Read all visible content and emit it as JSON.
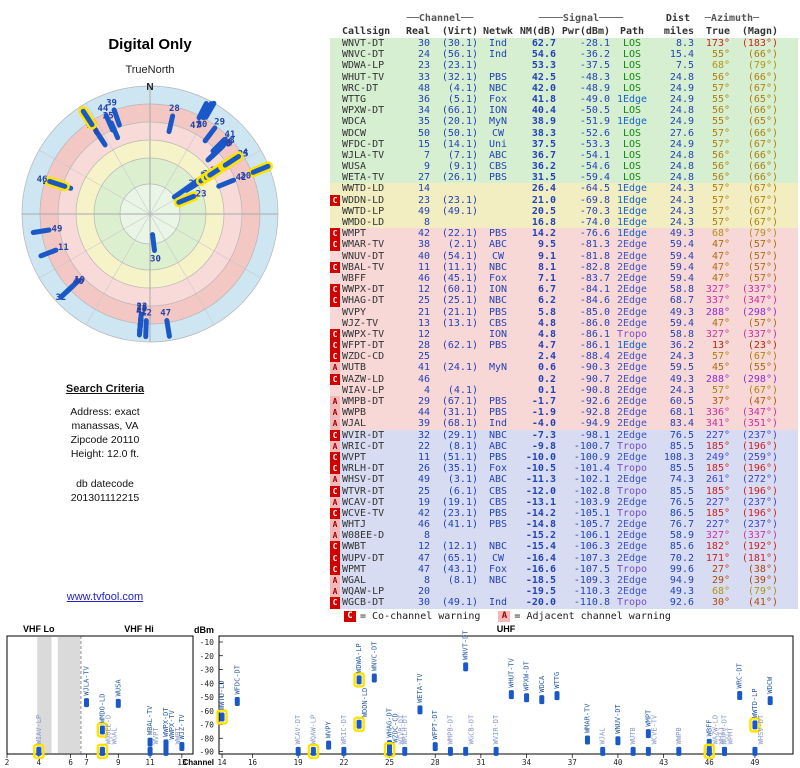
{
  "title": "Digital Only",
  "compass_label": "TrueNorth",
  "search": {
    "heading": "Search Criteria",
    "lines": [
      "Address: exact",
      "manassas, VA",
      "Zipcode 20110",
      "Height: 12.0 ft."
    ],
    "datecode_label": "db datecode",
    "datecode": "201301112215"
  },
  "link": "www.tvfool.com",
  "legend": {
    "c_symbol": "C",
    "c_label": "= Co-channel warning",
    "a_symbol": "A",
    "a_label": "= Adjacent channel warning"
  },
  "table": {
    "header1": {
      "channel": "──Channel──",
      "signal": "────Signal────",
      "dist": "Dist",
      "azimuth": "─Azimuth─"
    },
    "header2": {
      "callsign": "Callsign",
      "real": "Real",
      "virt": "(Virt)",
      "netwk": "Netwk",
      "nm": "NM(dB)",
      "pwr": "Pwr(dBm)",
      "path": "Path",
      "miles": "miles",
      "true": "True",
      "magn": "(Magn)"
    }
  },
  "colors": {
    "accent_blue": "#2343b8",
    "bar": "#1a58c8",
    "highlight": "#ffe400",
    "warn_c_bg": "#d40000",
    "warn_a_bg": "#f5b8b8",
    "row_green": "#d6efd0",
    "row_yellow": "#f2eec2",
    "row_pink": "#f8d7d7",
    "row_blue": "#d7dcf2",
    "path": {
      "LOS": "#0b8a0b",
      "1Edge": "#1667c9",
      "2Edge": "#4256c4",
      "Tropo": "#7a4fc9"
    },
    "radar_bands": [
      [
        "#cde6f1",
        128
      ],
      [
        "#f3c7c4",
        110
      ],
      [
        "#f8dbd9",
        92
      ],
      [
        "#f7f3c9",
        74
      ],
      [
        "#dcefcf",
        56
      ],
      [
        "#e9f6e6",
        30
      ]
    ]
  },
  "chart_data": {
    "type": "table",
    "columns": [
      "Callsign",
      "Real",
      "(Virt)",
      "Netwk",
      "NM(dB)",
      "Pwr(dBm)",
      "Path",
      "miles",
      "True",
      "(Magn)"
    ],
    "radar": {
      "type": "scatter",
      "north": "N"
    },
    "bottom_chart": {
      "type": "scatter",
      "ylabel": "dBm",
      "xlabel": "Channel",
      "yticks": [
        -10,
        -20,
        -30,
        -40,
        -50,
        -60,
        -70,
        -80,
        -90
      ],
      "vhf_lo_label": "VHF Lo",
      "vhf_hi_label": "VHF Hi",
      "uhf_label": "UHF",
      "vhf_ticks": [
        2,
        4,
        6,
        7,
        9,
        11,
        13
      ],
      "uhf_ticks": [
        14,
        16,
        19,
        22,
        25,
        28,
        31,
        34,
        37,
        40,
        43,
        46,
        49
      ],
      "gray_bands": [
        [
          3.9,
          4.8
        ],
        [
          5.2,
          6.6
        ]
      ],
      "ylim": [
        -90,
        -10
      ],
      "xlim_vhf": [
        2,
        13.7
      ],
      "xlim_uhf": [
        13.8,
        51.5
      ]
    },
    "rows": [
      {
        "callsign": "WNVT-DT",
        "real": 30,
        "virt": "30.1",
        "net": "Ind",
        "nm": 62.7,
        "pwr": -28.1,
        "path": "LOS",
        "dist": 8.3,
        "az_true": 173,
        "az_magn": 183,
        "warn": "",
        "hl": false
      },
      {
        "callsign": "WNVC-DT",
        "real": 24,
        "virt": "56.1",
        "net": "Ind",
        "nm": 54.6,
        "pwr": -36.2,
        "path": "LOS",
        "dist": 15.4,
        "az_true": 55,
        "az_magn": 66,
        "warn": "",
        "hl": false
      },
      {
        "callsign": "WDWA-LP",
        "real": 23,
        "virt": "23.1",
        "net": "",
        "nm": 53.3,
        "pwr": -37.5,
        "path": "LOS",
        "dist": 7.5,
        "az_true": 68,
        "az_magn": 79,
        "warn": "",
        "hl": true
      },
      {
        "callsign": "WHUT-TV",
        "real": 33,
        "virt": "32.1",
        "net": "PBS",
        "nm": 42.5,
        "pwr": -48.3,
        "path": "LOS",
        "dist": 24.8,
        "az_true": 56,
        "az_magn": 66,
        "warn": "",
        "hl": false
      },
      {
        "callsign": "WRC-DT",
        "real": 48,
        "virt": "4.1",
        "net": "NBC",
        "nm": 42.0,
        "pwr": -48.9,
        "path": "LOS",
        "dist": 24.9,
        "az_true": 57,
        "az_magn": 67,
        "warn": "",
        "hl": false
      },
      {
        "callsign": "WTTG",
        "real": 36,
        "virt": "5.1",
        "net": "Fox",
        "nm": 41.8,
        "pwr": -49.0,
        "path": "1Edge",
        "dist": 24.9,
        "az_true": 55,
        "az_magn": 65,
        "warn": "",
        "hl": false
      },
      {
        "callsign": "WPXW-DT",
        "real": 34,
        "virt": "66.1",
        "net": "ION",
        "nm": 40.4,
        "pwr": -50.5,
        "path": "LOS",
        "dist": 24.8,
        "az_true": 56,
        "az_magn": 66,
        "warn": "",
        "hl": false
      },
      {
        "callsign": "WDCA",
        "real": 35,
        "virt": "20.1",
        "net": "MyN",
        "nm": 38.9,
        "pwr": -51.9,
        "path": "1Edge",
        "dist": 24.9,
        "az_true": 55,
        "az_magn": 65,
        "warn": "",
        "hl": false
      },
      {
        "callsign": "WDCW",
        "real": 50,
        "virt": "50.1",
        "net": "CW",
        "nm": 38.3,
        "pwr": -52.6,
        "path": "LOS",
        "dist": 27.6,
        "az_true": 57,
        "az_magn": 66,
        "warn": "",
        "hl": false
      },
      {
        "callsign": "WFDC-DT",
        "real": 15,
        "virt": "14.1",
        "net": "Uni",
        "nm": 37.5,
        "pwr": -53.3,
        "path": "LOS",
        "dist": 24.9,
        "az_true": 57,
        "az_magn": 67,
        "warn": "",
        "hl": false
      },
      {
        "callsign": "WJLA-TV",
        "real": 7,
        "virt": "7.1",
        "net": "ABC",
        "nm": 36.7,
        "pwr": -54.1,
        "path": "LOS",
        "dist": 24.8,
        "az_true": 56,
        "az_magn": 66,
        "warn": "",
        "hl": false
      },
      {
        "callsign": "WUSA",
        "real": 9,
        "virt": "9.1",
        "net": "CBS",
        "nm": 36.2,
        "pwr": -54.6,
        "path": "LOS",
        "dist": 24.8,
        "az_true": 56,
        "az_magn": 66,
        "warn": "",
        "hl": false
      },
      {
        "callsign": "WETA-TV",
        "real": 27,
        "virt": "26.1",
        "net": "PBS",
        "nm": 31.5,
        "pwr": -59.4,
        "path": "LOS",
        "dist": 24.8,
        "az_true": 56,
        "az_magn": 66,
        "warn": "",
        "hl": false
      },
      {
        "callsign": "WWTD-LD",
        "real": 14,
        "virt": "",
        "net": "",
        "nm": 26.4,
        "pwr": -64.5,
        "path": "1Edge",
        "dist": 24.3,
        "az_true": 57,
        "az_magn": 67,
        "warn": "",
        "hl": true
      },
      {
        "callsign": "WDDN-LD",
        "real": 23,
        "virt": "23.1",
        "net": "",
        "nm": 21.0,
        "pwr": -69.8,
        "path": "1Edge",
        "dist": 24.3,
        "az_true": 57,
        "az_magn": 67,
        "warn": "C",
        "hl": true
      },
      {
        "callsign": "WWTD-LP",
        "real": 49,
        "virt": "49.1",
        "net": "",
        "nm": 20.5,
        "pwr": -70.3,
        "path": "1Edge",
        "dist": 24.3,
        "az_true": 57,
        "az_magn": 67,
        "warn": "",
        "hl": true
      },
      {
        "callsign": "WMDO-LD",
        "real": 8,
        "virt": "",
        "net": "",
        "nm": 16.8,
        "pwr": -74.0,
        "path": "1Edge",
        "dist": 24.3,
        "az_true": 57,
        "az_magn": 67,
        "warn": "",
        "hl": true
      },
      {
        "callsign": "WMPT",
        "real": 42,
        "virt": "22.1",
        "net": "PBS",
        "nm": 14.2,
        "pwr": -76.6,
        "path": "1Edge",
        "dist": 49.3,
        "az_true": 68,
        "az_magn": 79,
        "warn": "C",
        "hl": false
      },
      {
        "callsign": "WMAR-TV",
        "real": 38,
        "virt": "2.1",
        "net": "ABC",
        "nm": 9.5,
        "pwr": -81.3,
        "path": "2Edge",
        "dist": 59.4,
        "az_true": 47,
        "az_magn": 57,
        "warn": "C",
        "hl": false
      },
      {
        "callsign": "WNUV-DT",
        "real": 40,
        "virt": "54.1",
        "net": "CW",
        "nm": 9.1,
        "pwr": -81.8,
        "path": "2Edge",
        "dist": 59.4,
        "az_true": 47,
        "az_magn": 57,
        "warn": "",
        "hl": false
      },
      {
        "callsign": "WBAL-TV",
        "real": 11,
        "virt": "11.1",
        "net": "NBC",
        "nm": 8.1,
        "pwr": -82.8,
        "path": "2Edge",
        "dist": 59.4,
        "az_true": 47,
        "az_magn": 57,
        "warn": "C",
        "hl": false
      },
      {
        "callsign": "WBFF",
        "real": 46,
        "virt": "45.1",
        "net": "Fox",
        "nm": 7.1,
        "pwr": -83.7,
        "path": "2Edge",
        "dist": 59.4,
        "az_true": 47,
        "az_magn": 57,
        "warn": "",
        "hl": false
      },
      {
        "callsign": "WWPX-DT",
        "real": 12,
        "virt": "60.1",
        "net": "ION",
        "nm": 6.7,
        "pwr": -84.1,
        "path": "2Edge",
        "dist": 58.8,
        "az_true": 327,
        "az_magn": 337,
        "warn": "C",
        "hl": false
      },
      {
        "callsign": "WHAG-DT",
        "real": 25,
        "virt": "25.1",
        "net": "NBC",
        "nm": 6.2,
        "pwr": -84.6,
        "path": "2Edge",
        "dist": 68.7,
        "az_true": 337,
        "az_magn": 347,
        "warn": "C",
        "hl": false
      },
      {
        "callsign": "WVPY",
        "real": 21,
        "virt": "21.1",
        "net": "PBS",
        "nm": 5.8,
        "pwr": -85.0,
        "path": "2Edge",
        "dist": 49.3,
        "az_true": 288,
        "az_magn": 298,
        "warn": "",
        "hl": false
      },
      {
        "callsign": "WJZ-TV",
        "real": 13,
        "virt": "13.1",
        "net": "CBS",
        "nm": 4.8,
        "pwr": -86.0,
        "path": "2Edge",
        "dist": 59.4,
        "az_true": 47,
        "az_magn": 57,
        "warn": "",
        "hl": false
      },
      {
        "callsign": "WWPX-TV",
        "real": 12,
        "virt": "",
        "net": "ION",
        "nm": 4.8,
        "pwr": -86.1,
        "path": "Tropo",
        "dist": 58.8,
        "az_true": 327,
        "az_magn": 337,
        "warn": "C",
        "hl": false
      },
      {
        "callsign": "WFPT-DT",
        "real": 28,
        "virt": "62.1",
        "net": "PBS",
        "nm": 4.7,
        "pwr": -86.1,
        "path": "1Edge",
        "dist": 36.2,
        "az_true": 13,
        "az_magn": 23,
        "warn": "C",
        "hl": false
      },
      {
        "callsign": "WZDC-CD",
        "real": 25,
        "virt": "",
        "net": "",
        "nm": 2.4,
        "pwr": -88.4,
        "path": "2Edge",
        "dist": 24.3,
        "az_true": 57,
        "az_magn": 67,
        "warn": "C",
        "hl": true
      },
      {
        "callsign": "WUTB",
        "real": 41,
        "virt": "24.1",
        "net": "MyN",
        "nm": 0.6,
        "pwr": -90.3,
        "path": "2Edge",
        "dist": 59.5,
        "az_true": 45,
        "az_magn": 55,
        "warn": "A",
        "hl": false
      },
      {
        "callsign": "WAZW-LD",
        "real": 46,
        "virt": "",
        "net": "",
        "nm": 0.2,
        "pwr": -90.7,
        "path": "2Edge",
        "dist": 49.3,
        "az_true": 288,
        "az_magn": 298,
        "warn": "C",
        "hl": true
      },
      {
        "callsign": "WIAV-LP",
        "real": 4,
        "virt": "4.1",
        "net": "",
        "nm": 0.1,
        "pwr": -90.8,
        "path": "2Edge",
        "dist": 24.3,
        "az_true": 57,
        "az_magn": 67,
        "warn": "",
        "hl": true
      },
      {
        "callsign": "WMPB-DT",
        "real": 29,
        "virt": "67.1",
        "net": "PBS",
        "nm": -1.7,
        "pwr": -92.6,
        "path": "2Edge",
        "dist": 60.5,
        "az_true": 37,
        "az_magn": 47,
        "warn": "A",
        "hl": false
      },
      {
        "callsign": "WWPB",
        "real": 44,
        "virt": "31.1",
        "net": "PBS",
        "nm": -1.9,
        "pwr": -92.8,
        "path": "2Edge",
        "dist": 68.1,
        "az_true": 336,
        "az_magn": 347,
        "warn": "A",
        "hl": false
      },
      {
        "callsign": "WJAL",
        "real": 39,
        "virt": "68.1",
        "net": "Ind",
        "nm": -4.0,
        "pwr": -94.9,
        "path": "2Edge",
        "dist": 83.4,
        "az_true": 341,
        "az_magn": 351,
        "warn": "A",
        "hl": false
      },
      {
        "callsign": "WVIR-DT",
        "real": 32,
        "virt": "29.1",
        "net": "NBC",
        "nm": -7.3,
        "pwr": -98.1,
        "path": "2Edge",
        "dist": 76.5,
        "az_true": 227,
        "az_magn": 237,
        "warn": "C",
        "hl": false
      },
      {
        "callsign": "WRIC-DT",
        "real": 22,
        "virt": "8.1",
        "net": "ABC",
        "nm": -9.8,
        "pwr": -100.7,
        "path": "Tropo",
        "dist": 85.5,
        "az_true": 185,
        "az_magn": 196,
        "warn": "A",
        "hl": false
      },
      {
        "callsign": "WVPT",
        "real": 11,
        "virt": "51.1",
        "net": "PBS",
        "nm": -10.0,
        "pwr": -100.9,
        "path": "2Edge",
        "dist": 108.3,
        "az_true": 249,
        "az_magn": 259,
        "warn": "C",
        "hl": false
      },
      {
        "callsign": "WRLH-DT",
        "real": 26,
        "virt": "35.1",
        "net": "Fox",
        "nm": -10.5,
        "pwr": -101.4,
        "path": "Tropo",
        "dist": 85.5,
        "az_true": 185,
        "az_magn": 196,
        "warn": "C",
        "hl": false
      },
      {
        "callsign": "WHSV-DT",
        "real": 49,
        "virt": "3.1",
        "net": "ABC",
        "nm": -11.3,
        "pwr": -102.1,
        "path": "2Edge",
        "dist": 74.3,
        "az_true": 261,
        "az_magn": 272,
        "warn": "A",
        "hl": false
      },
      {
        "callsign": "WTVR-DT",
        "real": 25,
        "virt": "6.1",
        "net": "CBS",
        "nm": -12.0,
        "pwr": -102.8,
        "path": "Tropo",
        "dist": 85.5,
        "az_true": 185,
        "az_magn": 196,
        "warn": "C",
        "hl": false
      },
      {
        "callsign": "WCAV-DT",
        "real": 19,
        "virt": "19.1",
        "net": "CBS",
        "nm": -13.1,
        "pwr": -103.9,
        "path": "2Edge",
        "dist": 76.5,
        "az_true": 227,
        "az_magn": 237,
        "warn": "A",
        "hl": false
      },
      {
        "callsign": "WCVE-TV",
        "real": 42,
        "virt": "23.1",
        "net": "PBS",
        "nm": -14.2,
        "pwr": -105.1,
        "path": "Tropo",
        "dist": 86.5,
        "az_true": 185,
        "az_magn": 196,
        "warn": "C",
        "hl": false
      },
      {
        "callsign": "WHTJ",
        "real": 46,
        "virt": "41.1",
        "net": "PBS",
        "nm": -14.8,
        "pwr": -105.7,
        "path": "2Edge",
        "dist": 76.7,
        "az_true": 227,
        "az_magn": 237,
        "warn": "A",
        "hl": false
      },
      {
        "callsign": "W08EE-D",
        "real": 8,
        "virt": "",
        "net": "",
        "nm": -15.2,
        "pwr": -106.1,
        "path": "2Edge",
        "dist": 58.9,
        "az_true": 327,
        "az_magn": 337,
        "warn": "A",
        "hl": true
      },
      {
        "callsign": "WWBT",
        "real": 12,
        "virt": "12.1",
        "net": "NBC",
        "nm": -15.4,
        "pwr": -106.3,
        "path": "2Edge",
        "dist": 85.6,
        "az_true": 182,
        "az_magn": 192,
        "warn": "C",
        "hl": false
      },
      {
        "callsign": "WUPV-DT",
        "real": 47,
        "virt": "65.1",
        "net": "CW",
        "nm": -16.4,
        "pwr": -107.3,
        "path": "2Edge",
        "dist": 70.2,
        "az_true": 171,
        "az_magn": 181,
        "warn": "C",
        "hl": false
      },
      {
        "callsign": "WPMT",
        "real": 47,
        "virt": "43.1",
        "net": "Fox",
        "nm": -16.6,
        "pwr": -107.5,
        "path": "Tropo",
        "dist": 99.6,
        "az_true": 27,
        "az_magn": 38,
        "warn": "C",
        "hl": false
      },
      {
        "callsign": "WGAL",
        "real": 8,
        "virt": "8.1",
        "net": "NBC",
        "nm": -18.5,
        "pwr": -109.3,
        "path": "2Edge",
        "dist": 94.9,
        "az_true": 29,
        "az_magn": 39,
        "warn": "A",
        "hl": false
      },
      {
        "callsign": "WQAW-LP",
        "real": 20,
        "virt": "",
        "net": "",
        "nm": -19.5,
        "pwr": -110.3,
        "path": "2Edge",
        "dist": 49.3,
        "az_true": 68,
        "az_magn": 79,
        "warn": "A",
        "hl": true
      },
      {
        "callsign": "WGCB-DT",
        "real": 30,
        "virt": "49.1",
        "net": "Ind",
        "nm": -20.0,
        "pwr": -110.8,
        "path": "Tropo",
        "dist": 92.6,
        "az_true": 30,
        "az_magn": 41,
        "warn": "C",
        "hl": false
      }
    ]
  }
}
